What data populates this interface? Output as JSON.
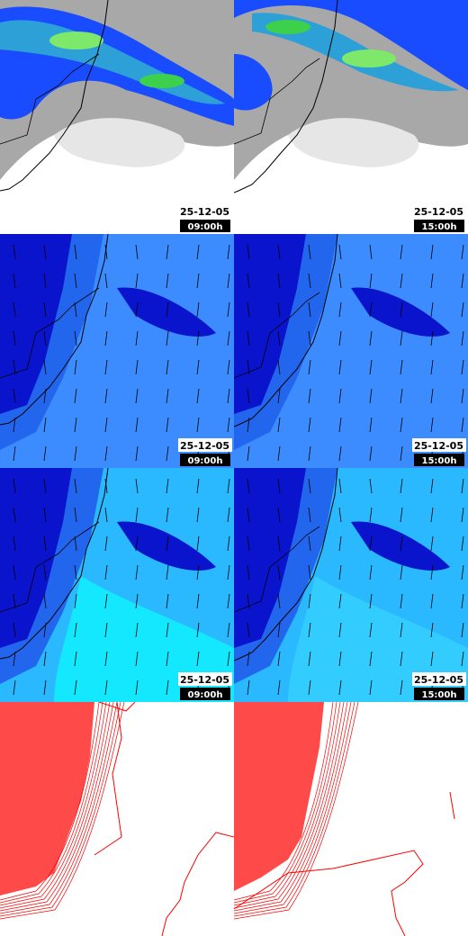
{
  "panels": [
    {
      "date": "25-12-05",
      "time": "09:00h"
    },
    {
      "date": "25-12-05",
      "time": "15:00h"
    },
    {
      "date": "25-12-05",
      "time": "09:00h"
    },
    {
      "date": "25-12-05",
      "time": "15:00h"
    },
    {
      "date": "25-12-05",
      "time": "09:00h"
    },
    {
      "date": "25-12-05",
      "time": "15:00h"
    }
  ]
}
